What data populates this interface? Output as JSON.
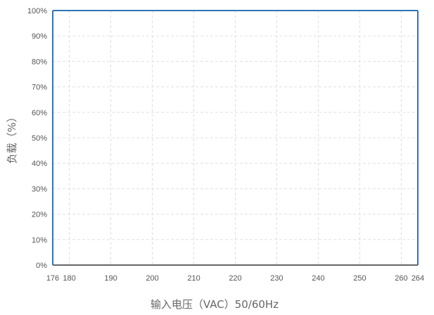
{
  "chart_data": {
    "type": "line",
    "x": [
      176,
      264
    ],
    "series": [
      {
        "values": [
          100,
          100
        ]
      }
    ],
    "xlabel": "输入电压（VAC）50/60Hz",
    "ylabel": "负载（%）",
    "xlim": [
      176,
      264
    ],
    "ylim": [
      0,
      100
    ],
    "xticks": [
      176,
      180,
      190,
      200,
      210,
      220,
      230,
      240,
      250,
      260,
      264
    ],
    "xtick_labels": [
      "176",
      "180",
      "190",
      "200",
      "210",
      "220",
      "230",
      "240",
      "250",
      "260",
      "264"
    ],
    "yticks": [
      0,
      10,
      20,
      30,
      40,
      50,
      60,
      70,
      80,
      90,
      100
    ],
    "ytick_labels": [
      "0%",
      "10%",
      "20%",
      "30%",
      "40%",
      "50%",
      "60%",
      "70%",
      "80%",
      "90%",
      "100%"
    ],
    "grid": true,
    "line_color": "#2e75b6",
    "axis_color": "#333333",
    "grid_color": "#e0e0e0"
  }
}
